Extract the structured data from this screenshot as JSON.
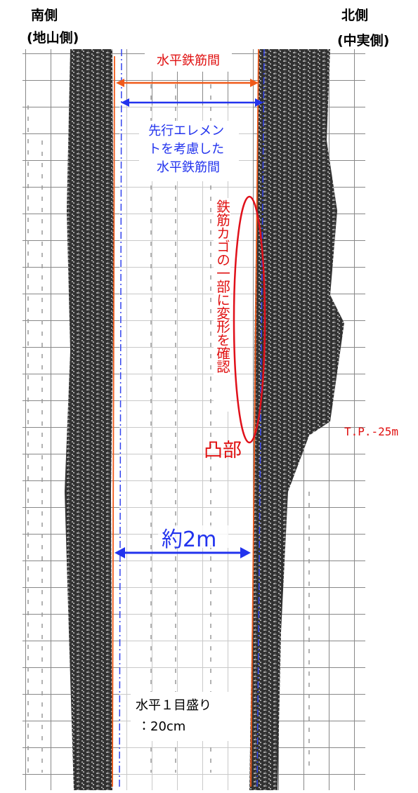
{
  "header": {
    "south": [
      "南側",
      "(地山側)"
    ],
    "north": [
      "北側",
      "(中実側)"
    ]
  },
  "annotations": {
    "rebar_spacing": "水平鉄筋間",
    "rebar_spacing_with_element": [
      "先行エレメン",
      "トを考慮した",
      "水平鉄筋間"
    ],
    "deformation": "鉄筋カゴの一部に変形を確認",
    "convex": "凸部",
    "elevation": "T.P.-25m",
    "width": "約2m",
    "scale": [
      "水平１目盛り",
      "：20cm"
    ]
  }
}
